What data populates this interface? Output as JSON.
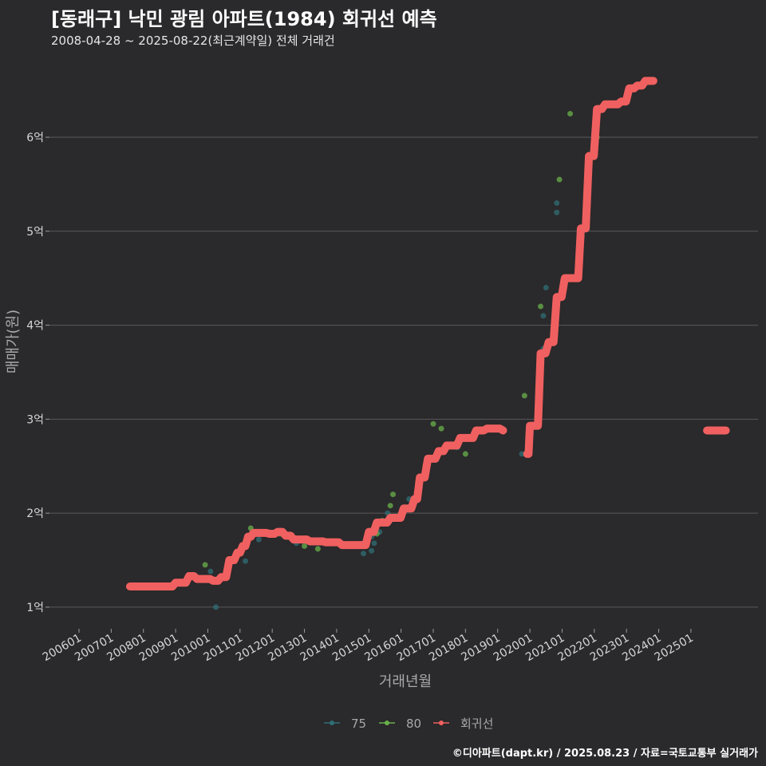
{
  "title": "[동래구] 낙민 광림 아파트(1984) 회귀선 예측",
  "subtitle": "2008-04-28 ~ 2025-08-22(최근계약일) 전체 거래건",
  "footer": "©디아파트(dapt.kr) / 2025.08.23 / 자료=국토교통부 실거래가",
  "colors": {
    "background": "#2a292b",
    "grid": "#5a595b",
    "series_75": "#2f6f75",
    "series_80": "#6ab04c",
    "regression": "#f06060"
  },
  "chart_data": {
    "type": "scatter",
    "xlabel": "거래년월",
    "ylabel": "매매가(원)",
    "x_ticks": [
      "200601",
      "200701",
      "200801",
      "200901",
      "201001",
      "201101",
      "201201",
      "201301",
      "201401",
      "201501",
      "201601",
      "201701",
      "201801",
      "201901",
      "202001",
      "202101",
      "202201",
      "202301",
      "202401",
      "202501"
    ],
    "y_ticks": [
      {
        "value": 1,
        "label": "1억"
      },
      {
        "value": 2,
        "label": "2억"
      },
      {
        "value": 3,
        "label": "3억"
      },
      {
        "value": 4,
        "label": "4억"
      },
      {
        "value": 5,
        "label": "5억"
      },
      {
        "value": 6,
        "label": "6억"
      }
    ],
    "xlim": [
      "2005-02",
      "2027-02"
    ],
    "ylim": [
      0.77,
      6.9
    ],
    "y_unit": "억",
    "legend_position": "bottom",
    "series": [
      {
        "name": "75",
        "points": [
          [
            "2010-02",
            1.38
          ],
          [
            "2010-04",
            1.0
          ],
          [
            "2011-03",
            1.49
          ],
          [
            "2011-08",
            1.72
          ],
          [
            "2012-10",
            1.68
          ],
          [
            "2014-11",
            1.57
          ],
          [
            "2015-02",
            1.6
          ],
          [
            "2015-02",
            1.75
          ],
          [
            "2015-03",
            1.68
          ],
          [
            "2015-05",
            1.8
          ],
          [
            "2015-07",
            1.9
          ],
          [
            "2015-08",
            2.0
          ],
          [
            "2016-04",
            2.15
          ],
          [
            "2017-06",
            2.7
          ],
          [
            "2017-10",
            2.7
          ],
          [
            "2019-10",
            2.63
          ],
          [
            "2020-06",
            3.75
          ],
          [
            "2020-06",
            4.1
          ],
          [
            "2020-07",
            4.4
          ],
          [
            "2020-11",
            5.2
          ],
          [
            "2020-11",
            5.3
          ]
        ]
      },
      {
        "name": "80",
        "points": [
          [
            "2009-12",
            1.45
          ],
          [
            "2011-05",
            1.84
          ],
          [
            "2012-04",
            1.78
          ],
          [
            "2012-11",
            1.72
          ],
          [
            "2013-01",
            1.65
          ],
          [
            "2013-06",
            1.62
          ],
          [
            "2015-04",
            1.78
          ],
          [
            "2015-06",
            1.92
          ],
          [
            "2015-09",
            2.08
          ],
          [
            "2015-10",
            2.2
          ],
          [
            "2016-06",
            2.14
          ],
          [
            "2016-10",
            2.5
          ],
          [
            "2017-01",
            2.95
          ],
          [
            "2017-04",
            2.9
          ],
          [
            "2018-01",
            2.63
          ],
          [
            "2019-11",
            3.25
          ],
          [
            "2020-05",
            4.2
          ],
          [
            "2020-12",
            5.55
          ],
          [
            "2021-04",
            6.25
          ],
          [
            "2022-02",
            6.0
          ]
        ]
      },
      {
        "name": "회귀선",
        "segments": [
          [
            [
              "2007-08",
              1.22
            ],
            [
              "2008-07",
              1.22
            ],
            [
              "2009-01",
              1.26
            ],
            [
              "2009-06",
              1.33
            ],
            [
              "2009-09",
              1.3
            ],
            [
              "2010-03",
              1.28
            ],
            [
              "2010-06",
              1.32
            ],
            [
              "2010-09",
              1.5
            ],
            [
              "2010-12",
              1.58
            ],
            [
              "2011-02",
              1.65
            ],
            [
              "2011-04",
              1.75
            ],
            [
              "2011-06",
              1.79
            ],
            [
              "2011-12",
              1.78
            ],
            [
              "2012-03",
              1.8
            ],
            [
              "2012-06",
              1.76
            ],
            [
              "2012-09",
              1.72
            ],
            [
              "2013-03",
              1.7
            ],
            [
              "2013-09",
              1.69
            ],
            [
              "2014-03",
              1.66
            ],
            [
              "2014-09",
              1.66
            ],
            [
              "2015-01",
              1.8
            ],
            [
              "2015-04",
              1.9
            ],
            [
              "2015-09",
              1.95
            ],
            [
              "2016-02",
              2.05
            ],
            [
              "2016-06",
              2.15
            ],
            [
              "2016-08",
              2.38
            ],
            [
              "2016-11",
              2.58
            ],
            [
              "2017-03",
              2.66
            ],
            [
              "2017-06",
              2.72
            ],
            [
              "2017-11",
              2.8
            ],
            [
              "2018-05",
              2.88
            ],
            [
              "2018-09",
              2.9
            ],
            [
              "2019-03",
              2.88
            ]
          ],
          [
            [
              "2019-12",
              2.63
            ],
            [
              "2020-01",
              2.93
            ],
            [
              "2020-03",
              2.93
            ],
            [
              "2020-05",
              3.7
            ],
            [
              "2020-08",
              3.82
            ],
            [
              "2020-11",
              4.3
            ],
            [
              "2021-02",
              4.5
            ],
            [
              "2021-06",
              4.5
            ],
            [
              "2021-08",
              5.03
            ],
            [
              "2021-11",
              5.8
            ],
            [
              "2022-02",
              6.3
            ],
            [
              "2022-05",
              6.35
            ],
            [
              "2022-11",
              6.38
            ],
            [
              "2023-02",
              6.52
            ],
            [
              "2023-05",
              6.55
            ],
            [
              "2023-08",
              6.6
            ],
            [
              "2023-11",
              6.6
            ]
          ],
          [
            [
              "2025-07",
              2.88
            ],
            [
              "2026-02",
              2.88
            ]
          ]
        ]
      }
    ]
  }
}
